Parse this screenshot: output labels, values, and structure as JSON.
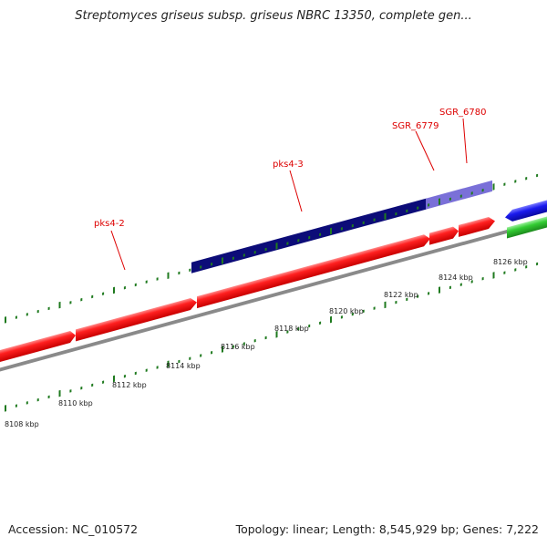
{
  "header": {
    "title": "Streptomyces griseus subsp. griseus NBRC 13350, complete gen..."
  },
  "footer": {
    "accession": "Accession: NC_010572",
    "summary": "Topology: linear; Length: 8,545,929 bp; Genes: 7,222"
  },
  "scale": {
    "labels": [
      "8108 kbp",
      "8110 kbp",
      "8112 kbp",
      "8114 kbp",
      "8116 kbp",
      "8118 kbp",
      "8120 kbp",
      "8122 kbp",
      "8124 kbp",
      "8126 kbp"
    ]
  },
  "gene_labels": [
    "pks4-2",
    "pks4-3",
    "SGR_6779",
    "SGR_6780"
  ],
  "colors": {
    "forward_cds": "#ff2222",
    "reverse_cds": "#1a1aee",
    "operon_dark": "#0c0c78",
    "operon_light": "#7a70d8",
    "rna": "#33cc33",
    "backbone": "#8a8a8a",
    "tick": "#1f7a1f",
    "label_red": "#dd0000"
  }
}
